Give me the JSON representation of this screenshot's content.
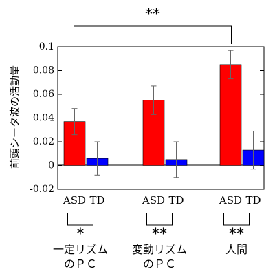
{
  "chart_data": {
    "type": "bar",
    "title": "",
    "xlabel": "",
    "ylabel": "前頭シータ波の活動量",
    "ylim": [
      -0.02,
      0.1
    ],
    "yticks": [
      "0.1",
      "0.08",
      "0.06",
      "0.04",
      "0.02",
      "0",
      "-0.02"
    ],
    "grid": false,
    "groups": [
      {
        "name_lines": [
          "一定リズム",
          "のＰＣ"
        ],
        "significance": "*",
        "bars": [
          {
            "label": "ASD",
            "value": 0.037,
            "error": 0.011,
            "color": "#ff0000"
          },
          {
            "label": "TD",
            "value": 0.006,
            "error": 0.014,
            "color": "#0000ff"
          }
        ]
      },
      {
        "name_lines": [
          "変動リズム",
          "のＰＣ"
        ],
        "significance": "**",
        "bars": [
          {
            "label": "ASD",
            "value": 0.055,
            "error": 0.012,
            "color": "#ff0000"
          },
          {
            "label": "TD",
            "value": 0.005,
            "error": 0.015,
            "color": "#0000ff"
          }
        ]
      },
      {
        "name_lines": [
          "人間"
        ],
        "significance": "**",
        "bars": [
          {
            "label": "ASD",
            "value": 0.085,
            "error": 0.012,
            "color": "#ff0000"
          },
          {
            "label": "TD",
            "value": 0.013,
            "error": 0.016,
            "color": "#0000ff"
          }
        ]
      }
    ],
    "top_comparison": {
      "label": "**",
      "from": "一定リズムのＰＣ ASD",
      "to": "人間 ASD"
    }
  }
}
